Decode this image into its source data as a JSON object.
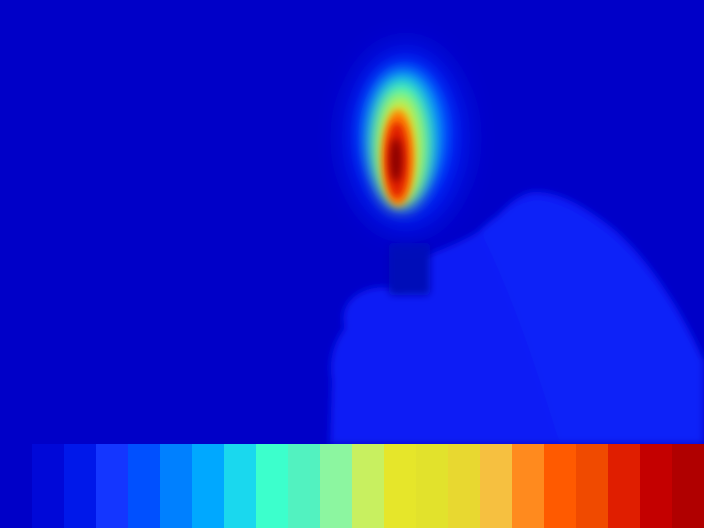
{
  "thermal_image": {
    "palette": "jet",
    "background_color": "#0000c8",
    "subject_color": "#0a1ef5",
    "hot_core_color": "#b00000"
  },
  "colorbar": {
    "orientation": "horizontal",
    "stops": [
      "#0000c8",
      "#0008d8",
      "#0018ea",
      "#1436ff",
      "#0050ff",
      "#0080ff",
      "#00a8ff",
      "#1ad8ee",
      "#3cffcc",
      "#52f2c0",
      "#8cf6a0",
      "#c8f060",
      "#e6e62a",
      "#e2e22c",
      "#e8d830",
      "#f6c040",
      "#ff8a1e",
      "#ff5a00",
      "#f04a00",
      "#e01e00",
      "#c40000",
      "#b00000"
    ]
  }
}
